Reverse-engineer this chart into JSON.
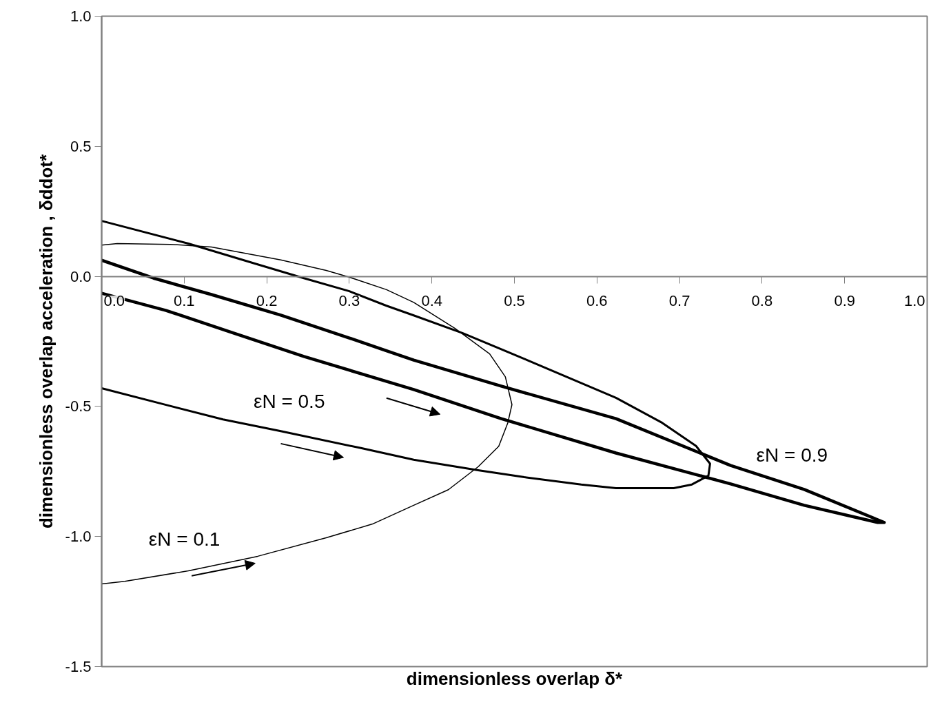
{
  "chart_data": {
    "type": "line",
    "xlabel": "dimensionless overlap δ*",
    "ylabel": "dimensionless overlap acceleration , δddot*",
    "xlim": [
      0,
      1.0
    ],
    "ylim": [
      -1.5,
      1.0
    ],
    "xticks": [
      {
        "value": 0,
        "label": "0.0"
      },
      0.1,
      0.2,
      0.3,
      0.4,
      0.5,
      0.6,
      0.7,
      0.8,
      0.9,
      {
        "value": 1.0,
        "label": "1.0"
      }
    ],
    "yticks": [
      {
        "value": -1.5,
        "label": "-1.5"
      },
      {
        "value": -1.0,
        "label": "-1.0"
      },
      -0.5,
      {
        "value": 0,
        "label": "0.0"
      },
      0.5,
      {
        "value": 1.0,
        "label": "1.0"
      }
    ],
    "grid": false,
    "marker": "none",
    "line_style": "solid",
    "series": [
      {
        "name": "εN = 0.1",
        "color": "#000000",
        "x": [
          0,
          0.019,
          0.083,
          0.133,
          0.217,
          0.272,
          0.3,
          0.345,
          0.378,
          0.428,
          0.47,
          0.489,
          0.497,
          0.492,
          0.481,
          0.456,
          0.42,
          0.378,
          0.328,
          0.272,
          0.189,
          0.105,
          0.028,
          0
        ],
        "values": [
          0.12,
          0.126,
          0.123,
          0.113,
          0.063,
          0.023,
          -0.003,
          -0.051,
          -0.1,
          -0.2,
          -0.298,
          -0.386,
          -0.493,
          -0.563,
          -0.653,
          -0.732,
          -0.82,
          -0.88,
          -0.952,
          -1.005,
          -1.076,
          -1.132,
          -1.172,
          -1.182
        ]
      },
      {
        "name": "εN = 0.5",
        "color": "#000000",
        "x": [
          0,
          0.105,
          0.189,
          0.245,
          0.3,
          0.345,
          0.378,
          0.437,
          0.512,
          0.623,
          0.679,
          0.72,
          0.737,
          0.735,
          0.715,
          0.693,
          0.623,
          0.581,
          0.512,
          0.456,
          0.378,
          0.314,
          0.217,
          0.147,
          0.078,
          0
        ],
        "values": [
          0.213,
          0.126,
          0.046,
          -0.007,
          -0.057,
          -0.113,
          -0.15,
          -0.218,
          -0.317,
          -0.467,
          -0.563,
          -0.652,
          -0.72,
          -0.766,
          -0.8,
          -0.814,
          -0.814,
          -0.8,
          -0.772,
          -0.745,
          -0.705,
          -0.66,
          -0.595,
          -0.55,
          -0.494,
          -0.43
        ]
      },
      {
        "name": "εN = 0.9",
        "color": "#000000",
        "x": [
          0,
          0.063,
          0.133,
          0.217,
          0.3,
          0.378,
          0.484,
          0.623,
          0.762,
          0.851,
          0.948,
          0.94,
          0.851,
          0.762,
          0.623,
          0.484,
          0.378,
          0.245,
          0.161,
          0.078,
          0
        ],
        "values": [
          0.062,
          -0.007,
          -0.07,
          -0.149,
          -0.237,
          -0.322,
          -0.422,
          -0.547,
          -0.727,
          -0.819,
          -0.946,
          -0.946,
          -0.88,
          -0.798,
          -0.679,
          -0.547,
          -0.435,
          -0.308,
          -0.219,
          -0.131,
          -0.065
        ]
      }
    ]
  }
}
